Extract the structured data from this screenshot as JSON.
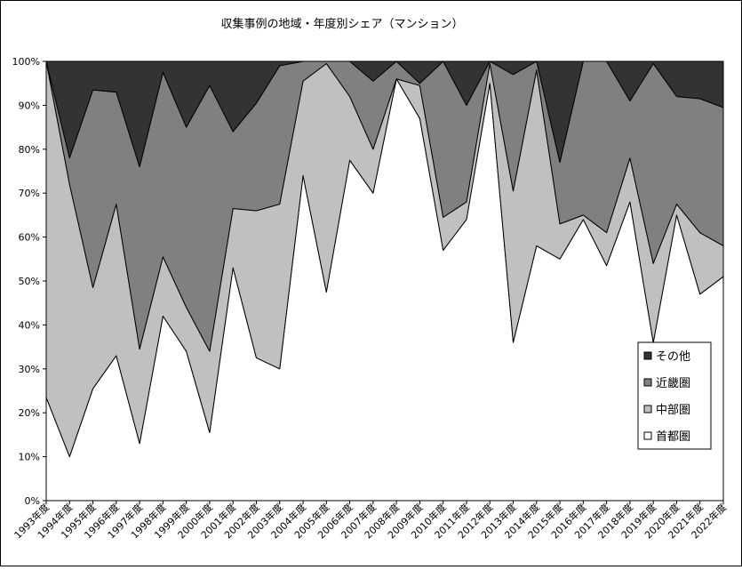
{
  "chart_data": {
    "type": "stacked_area",
    "title": "収集事例の地域・年度別シェア（マンション）",
    "categories": [
      "1993年度",
      "1994年度",
      "1995年度",
      "1996年度",
      "1997年度",
      "1998年度",
      "1999年度",
      "2000年度",
      "2001年度",
      "2002年度",
      "2003年度",
      "2004年度",
      "2005年度",
      "2006年度",
      "2007年度",
      "2008年度",
      "2009年度",
      "2010年度",
      "2011年度",
      "2012年度",
      "2013年度",
      "2014年度",
      "2015年度",
      "2016年度",
      "2017年度",
      "2018年度",
      "2019年度",
      "2020年度",
      "2021年度",
      "2022年度"
    ],
    "series": [
      {
        "name": "首都圏",
        "color": "#ffffff",
        "values": [
          23.5,
          10,
          25.5,
          33,
          13,
          42,
          34,
          15.5,
          53,
          32.5,
          30,
          74,
          47.5,
          77.5,
          70,
          96,
          87,
          57,
          64,
          95,
          36,
          58,
          55,
          64,
          53.5,
          68,
          36,
          65,
          47,
          51
        ]
      },
      {
        "name": "中部圏",
        "color": "#c0c0c0",
        "values": [
          76.5,
          62,
          23,
          34.5,
          21.5,
          13.5,
          10,
          18.5,
          13.5,
          33.5,
          37.5,
          21.5,
          52,
          14.5,
          10,
          0,
          7.5,
          7.5,
          4,
          4.5,
          34.5,
          40,
          8,
          1,
          7.5,
          10,
          18,
          2.5,
          14,
          7
        ]
      },
      {
        "name": "近畿圏",
        "color": "#808080",
        "values": [
          0,
          6,
          45,
          25.5,
          41.5,
          42,
          41,
          60.5,
          17.5,
          24.5,
          31.5,
          4.5,
          0.5,
          8,
          15.5,
          4,
          0.5,
          35.5,
          22,
          0.5,
          26.5,
          2,
          14,
          35,
          39,
          13,
          45.5,
          24.5,
          30.5,
          31.5
        ]
      },
      {
        "name": "その他",
        "color": "#333333",
        "values": [
          0,
          22,
          6.5,
          7,
          24,
          2.5,
          15,
          5.5,
          16,
          9.5,
          1,
          0,
          0,
          0,
          4.5,
          0,
          5,
          0,
          10,
          0,
          3,
          0,
          23,
          0,
          0,
          9,
          0.5,
          8,
          8.5,
          10.5
        ]
      }
    ],
    "ylim": [
      0,
      100
    ],
    "yticks": [
      {
        "value": 0,
        "label": "0%"
      },
      {
        "value": 10,
        "label": "10%"
      },
      {
        "value": 20,
        "label": "20%"
      },
      {
        "value": 30,
        "label": "30%"
      },
      {
        "value": 40,
        "label": "40%"
      },
      {
        "value": 50,
        "label": "50%"
      },
      {
        "value": 60,
        "label": "60%"
      },
      {
        "value": 70,
        "label": "70%"
      },
      {
        "value": 80,
        "label": "80%"
      },
      {
        "value": 90,
        "label": "90%"
      },
      {
        "value": 100,
        "label": "100%"
      }
    ],
    "legend": "right"
  }
}
